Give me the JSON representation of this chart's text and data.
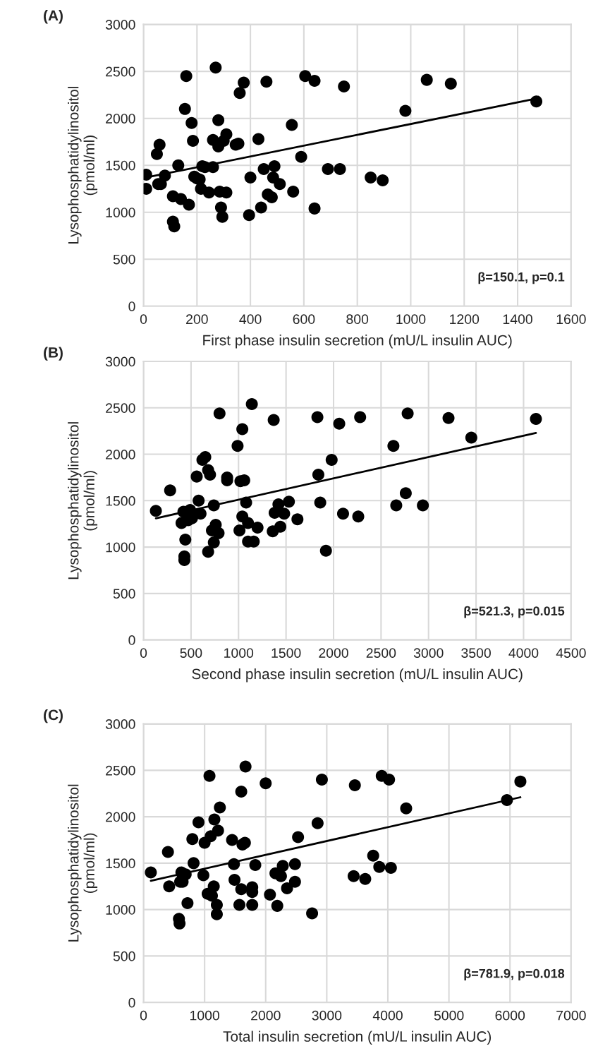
{
  "chart_data": [
    {
      "type": "scatter",
      "title": "(A)",
      "xlabel": "First phase insulin secretion (mU/L insulin AUC)",
      "ylabel": "Lysophosphatidylinositol\n(pmol/ml)",
      "annotations": [
        "β=150.1, p=0.1"
      ],
      "xlim": [
        0,
        1600
      ],
      "xticks": [
        0,
        200,
        400,
        600,
        800,
        1000,
        1200,
        1400,
        1600
      ],
      "ylim": [
        0,
        3000
      ],
      "yticks": [
        0,
        500,
        1000,
        1500,
        2000,
        2500,
        3000
      ],
      "grid": true,
      "series": [
        {
          "marker": "circle",
          "color": "#000000",
          "x": [
            10,
            10,
            50,
            55,
            60,
            65,
            80,
            110,
            110,
            115,
            130,
            140,
            155,
            160,
            170,
            180,
            185,
            190,
            200,
            210,
            215,
            220,
            230,
            245,
            260,
            260,
            270,
            280,
            280,
            285,
            290,
            295,
            300,
            310,
            310,
            345,
            355,
            360,
            375,
            395,
            400,
            430,
            440,
            450,
            460,
            465,
            480,
            485,
            490,
            510,
            555,
            560,
            590,
            605,
            640,
            640,
            690,
            735,
            750,
            850,
            895,
            980,
            1060,
            1150,
            1470
          ],
          "values": [
            1250,
            1400,
            1620,
            1300,
            1720,
            1300,
            1390,
            1170,
            900,
            850,
            1500,
            1140,
            2100,
            2450,
            1080,
            1950,
            1760,
            1380,
            1360,
            1350,
            1250,
            1490,
            1480,
            1210,
            1480,
            1770,
            2540,
            1980,
            1700,
            1220,
            1050,
            950,
            1760,
            1830,
            1210,
            1720,
            1730,
            2270,
            2380,
            970,
            1370,
            1780,
            1050,
            1460,
            2390,
            1190,
            1160,
            1370,
            1490,
            1300,
            1930,
            1220,
            1590,
            2450,
            1040,
            2400,
            1460,
            1460,
            2340,
            1370,
            1340,
            2080,
            2410,
            2370,
            2180
          ]
        },
        {
          "type": "line",
          "marker": "none",
          "color": "#000000",
          "x": [
            10,
            1470
          ],
          "values": [
            1370,
            2210
          ]
        }
      ]
    },
    {
      "type": "scatter",
      "title": "(B)",
      "xlabel": "Second phase insulin secretion (mU/L insulin AUC)",
      "ylabel": "Lysophosphatidylinositol\n(pmol/ml)",
      "annotations": [
        "β=521.3, p=0.015"
      ],
      "xlim": [
        0,
        4500
      ],
      "xticks": [
        0,
        500,
        1000,
        1500,
        2000,
        2500,
        3000,
        3500,
        4000,
        4500
      ],
      "ylim": [
        0,
        3000
      ],
      "yticks": [
        0,
        500,
        1000,
        1500,
        2000,
        2500,
        3000
      ],
      "grid": true,
      "series": [
        {
          "marker": "circle",
          "color": "#000000",
          "x": [
            130,
            280,
            400,
            420,
            430,
            430,
            440,
            470,
            490,
            510,
            560,
            580,
            600,
            620,
            650,
            680,
            680,
            700,
            720,
            740,
            740,
            760,
            790,
            800,
            880,
            880,
            990,
            1010,
            1020,
            1040,
            1040,
            1060,
            1080,
            1100,
            1100,
            1140,
            1160,
            1200,
            1360,
            1370,
            1380,
            1420,
            1440,
            1480,
            1530,
            1620,
            1830,
            1840,
            1860,
            1920,
            1980,
            2060,
            2100,
            2280,
            2260,
            2630,
            2660,
            2760,
            2780,
            2940,
            3210,
            3450,
            4130
          ],
          "values": [
            1390,
            1610,
            1260,
            1380,
            900,
            860,
            1080,
            1290,
            1400,
            1310,
            1760,
            1500,
            1360,
            1940,
            1970,
            950,
            1830,
            1780,
            1180,
            1450,
            1050,
            1240,
            1150,
            2440,
            1750,
            1720,
            2090,
            1180,
            1710,
            1330,
            2270,
            1720,
            1480,
            1060,
            1260,
            2540,
            1060,
            1210,
            1170,
            2370,
            1370,
            1460,
            1220,
            1360,
            1490,
            1300,
            2400,
            1780,
            1480,
            960,
            1940,
            2330,
            1360,
            2400,
            1330,
            2090,
            1450,
            1580,
            2440,
            1450,
            2390,
            2180,
            2380
          ]
        },
        {
          "type": "line",
          "marker": "none",
          "color": "#000000",
          "x": [
            130,
            4130
          ],
          "values": [
            1310,
            2230
          ]
        }
      ]
    },
    {
      "type": "scatter",
      "title": "(C)",
      "xlabel": "Total insulin secretion (mU/L insulin AUC)",
      "ylabel": "Lysophosphatidylinositol\n(pmol/ml)",
      "annotations": [
        "β=781.9, p=0.018"
      ],
      "xlim": [
        0,
        7000
      ],
      "xticks": [
        0,
        1000,
        2000,
        3000,
        4000,
        5000,
        6000,
        7000
      ],
      "ylim": [
        0,
        3000
      ],
      "yticks": [
        0,
        500,
        1000,
        1500,
        2000,
        2500,
        3000
      ],
      "grid": true,
      "series": [
        {
          "marker": "circle",
          "color": "#000000",
          "x": [
            120,
            400,
            420,
            580,
            590,
            600,
            620,
            640,
            690,
            720,
            800,
            820,
            900,
            980,
            1000,
            1050,
            1080,
            1100,
            1120,
            1150,
            1160,
            1200,
            1200,
            1220,
            1250,
            1450,
            1480,
            1490,
            1570,
            1600,
            1600,
            1620,
            1660,
            1670,
            1780,
            1780,
            1780,
            1830,
            2000,
            2070,
            2160,
            2190,
            2250,
            2280,
            2350,
            2480,
            2480,
            2530,
            2760,
            2850,
            2920,
            3440,
            3460,
            3630,
            3760,
            3860,
            3900,
            4020,
            4050,
            4300,
            5950,
            6170
          ],
          "values": [
            1400,
            1620,
            1250,
            900,
            850,
            1300,
            1400,
            1300,
            1380,
            1070,
            1760,
            1500,
            1940,
            1370,
            1720,
            1170,
            2440,
            1790,
            1150,
            1250,
            1970,
            1050,
            950,
            1850,
            2100,
            1750,
            1490,
            1320,
            1050,
            2270,
            1220,
            1700,
            1720,
            2540,
            1050,
            1190,
            1240,
            1480,
            2360,
            1160,
            1390,
            1040,
            1360,
            1470,
            1230,
            1490,
            1300,
            1780,
            960,
            1930,
            2400,
            1360,
            2340,
            1330,
            1580,
            1460,
            2440,
            2400,
            1450,
            2090,
            2180,
            2380
          ]
        },
        {
          "type": "line",
          "marker": "none",
          "color": "#000000",
          "x": [
            120,
            6170
          ],
          "values": [
            1310,
            2210
          ]
        }
      ]
    }
  ]
}
